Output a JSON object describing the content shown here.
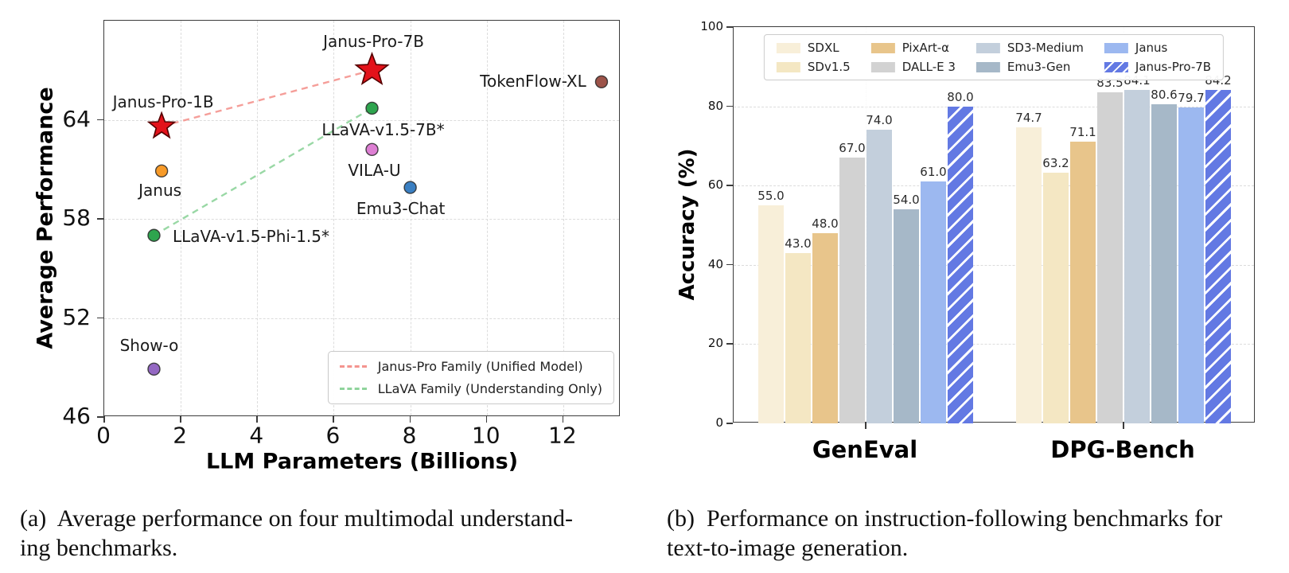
{
  "figure": {
    "caption_a_line1": "(a)  Average performance on four multimodal understand-",
    "caption_a_line2": "ing benchmarks.",
    "caption_b_line1": "(b)  Performance on instruction-following benchmarks for",
    "caption_b_line2": "text-to-image generation."
  },
  "chart_data": [
    {
      "type": "scatter",
      "xlabel": "LLM Parameters (Billions)",
      "ylabel": "Average Performance",
      "xlim": [
        0,
        13.5
      ],
      "ylim": [
        46,
        70
      ],
      "xticks": [
        0,
        2,
        4,
        6,
        8,
        10,
        12
      ],
      "yticks": [
        46,
        52,
        58,
        64
      ],
      "grid": true,
      "points": [
        {
          "label": "Janus-Pro-7B",
          "x": 7,
          "y": 67.0,
          "marker": "star",
          "size": 21,
          "color": "#e3121a"
        },
        {
          "label": "Janus-Pro-1B",
          "x": 1.5,
          "y": 63.6,
          "marker": "star",
          "size": 17,
          "color": "#e3121a"
        },
        {
          "label": "TokenFlow-XL",
          "x": 13,
          "y": 66.3,
          "marker": "circle",
          "size": 7.5,
          "color": "#9d544a"
        },
        {
          "label": "LLaVA-v1.5-7B*",
          "x": 7,
          "y": 64.7,
          "marker": "circle",
          "size": 7.5,
          "color": "#2ea44e"
        },
        {
          "label": "VILA-U",
          "x": 7,
          "y": 62.2,
          "marker": "circle",
          "size": 7.5,
          "color": "#dd7fd3"
        },
        {
          "label": "Janus",
          "x": 1.5,
          "y": 60.9,
          "marker": "circle",
          "size": 7.5,
          "color": "#f79a28"
        },
        {
          "label": "Emu3-Chat",
          "x": 8,
          "y": 59.9,
          "marker": "circle",
          "size": 7.5,
          "color": "#3a7fc2"
        },
        {
          "label": "LLaVA-v1.5-Phi-1.5*",
          "x": 1.3,
          "y": 57.0,
          "marker": "circle",
          "size": 7.5,
          "color": "#2ea44e"
        },
        {
          "label": "Show-o",
          "x": 1.3,
          "y": 48.9,
          "marker": "circle",
          "size": 7.5,
          "color": "#9468c3"
        }
      ],
      "lines": [
        {
          "name": "Janus-Pro Family (Unified Model)",
          "color": "#f4948f",
          "from": "Janus-Pro-1B",
          "to": "Janus-Pro-7B"
        },
        {
          "name": "LLaVA Family (Understanding Only)",
          "color": "#8fd49c",
          "from": "LLaVA-v1.5-Phi-1.5*",
          "to": "LLaVA-v1.5-7B*"
        }
      ],
      "legend_position": "lower right"
    },
    {
      "type": "bar",
      "ylabel": "Accuracy (%)",
      "ylim": [
        0,
        100
      ],
      "yticks": [
        0,
        20,
        40,
        60,
        80,
        100
      ],
      "grid": true,
      "categories": [
        "GenEval",
        "DPG-Bench"
      ],
      "series": [
        {
          "name": "SDXL",
          "color": "#f8efd9",
          "hatch": false,
          "values": [
            55.0,
            74.7
          ]
        },
        {
          "name": "SDv1.5",
          "color": "#f4e7c3",
          "hatch": false,
          "values": [
            43.0,
            63.2
          ]
        },
        {
          "name": "PixArt-α",
          "color": "#e8c58b",
          "hatch": false,
          "values": [
            48.0,
            71.1
          ]
        },
        {
          "name": "DALL-E 3",
          "color": "#d2d2d2",
          "hatch": false,
          "values": [
            67.0,
            83.5
          ]
        },
        {
          "name": "SD3-Medium",
          "color": "#c3cfdc",
          "hatch": false,
          "values": [
            74.0,
            84.1
          ]
        },
        {
          "name": "Emu3-Gen",
          "color": "#a6b8c8",
          "hatch": false,
          "values": [
            54.0,
            80.6
          ]
        },
        {
          "name": "Janus",
          "color": "#9cb8f0",
          "hatch": false,
          "values": [
            61.0,
            79.7
          ]
        },
        {
          "name": "Janus-Pro-7B",
          "color": "#6379e3",
          "hatch": true,
          "values": [
            80.0,
            84.2
          ]
        }
      ],
      "legend_position": "upper center"
    }
  ]
}
